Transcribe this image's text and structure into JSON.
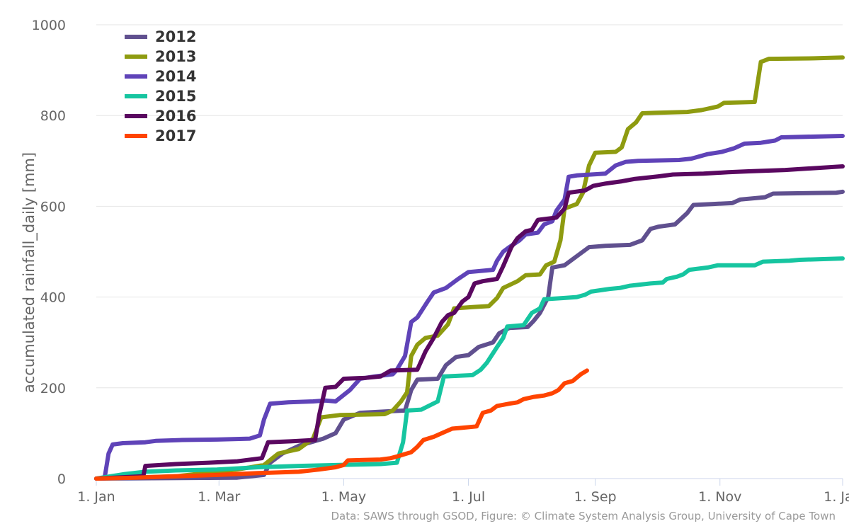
{
  "chart_data": {
    "type": "line",
    "ylabel": "accumulated rainfall_daily [mm]",
    "xlabel": "",
    "ylim": [
      0,
      1000
    ],
    "yticks": [
      "0",
      "200",
      "400",
      "600",
      "800",
      "1000"
    ],
    "xlim": [
      1,
      366
    ],
    "xticks": [
      {
        "label": "1. Jan",
        "day": 1
      },
      {
        "label": "1. Mar",
        "day": 61
      },
      {
        "label": "1. May",
        "day": 122
      },
      {
        "label": "1. Jul",
        "day": 183
      },
      {
        "label": "1. Sep",
        "day": 245
      },
      {
        "label": "1. Nov",
        "day": 306
      },
      {
        "label": "1. Jan",
        "day": 366
      }
    ],
    "grid": "horizontal",
    "legend_position": "top-left",
    "credit": "Data: SAWS through GSOD, Figure: © Climate System Analysis Group, University of Cape Town",
    "series": [
      {
        "name": "2012",
        "color": "#60508f",
        "points": [
          [
            1,
            0
          ],
          [
            70,
            2
          ],
          [
            83,
            8
          ],
          [
            86,
            35
          ],
          [
            92,
            55
          ],
          [
            100,
            72
          ],
          [
            112,
            88
          ],
          [
            118,
            100
          ],
          [
            122,
            130
          ],
          [
            130,
            145
          ],
          [
            143,
            148
          ],
          [
            152,
            150
          ],
          [
            155,
            195
          ],
          [
            158,
            218
          ],
          [
            168,
            220
          ],
          [
            172,
            250
          ],
          [
            177,
            268
          ],
          [
            183,
            272
          ],
          [
            188,
            290
          ],
          [
            195,
            300
          ],
          [
            198,
            320
          ],
          [
            203,
            332
          ],
          [
            212,
            334
          ],
          [
            215,
            348
          ],
          [
            218,
            365
          ],
          [
            222,
            400
          ],
          [
            224,
            465
          ],
          [
            230,
            470
          ],
          [
            236,
            490
          ],
          [
            242,
            510
          ],
          [
            250,
            513
          ],
          [
            262,
            515
          ],
          [
            268,
            525
          ],
          [
            272,
            550
          ],
          [
            276,
            555
          ],
          [
            284,
            560
          ],
          [
            290,
            585
          ],
          [
            293,
            603
          ],
          [
            302,
            605
          ],
          [
            312,
            607
          ],
          [
            316,
            615
          ],
          [
            328,
            620
          ],
          [
            332,
            628
          ],
          [
            363,
            630
          ],
          [
            366,
            632
          ]
        ]
      },
      {
        "name": "2013",
        "color": "#8e9b10",
        "points": [
          [
            1,
            0
          ],
          [
            40,
            5
          ],
          [
            70,
            20
          ],
          [
            83,
            30
          ],
          [
            90,
            55
          ],
          [
            100,
            65
          ],
          [
            107,
            88
          ],
          [
            111,
            135
          ],
          [
            120,
            140
          ],
          [
            142,
            142
          ],
          [
            146,
            150
          ],
          [
            150,
            170
          ],
          [
            153,
            190
          ],
          [
            155,
            270
          ],
          [
            158,
            295
          ],
          [
            162,
            310
          ],
          [
            168,
            315
          ],
          [
            173,
            340
          ],
          [
            176,
            375
          ],
          [
            185,
            378
          ],
          [
            193,
            380
          ],
          [
            197,
            398
          ],
          [
            200,
            420
          ],
          [
            207,
            435
          ],
          [
            211,
            448
          ],
          [
            218,
            450
          ],
          [
            221,
            470
          ],
          [
            225,
            478
          ],
          [
            228,
            525
          ],
          [
            230,
            595
          ],
          [
            233,
            600
          ],
          [
            236,
            605
          ],
          [
            239,
            630
          ],
          [
            242,
            690
          ],
          [
            245,
            718
          ],
          [
            255,
            720
          ],
          [
            258,
            730
          ],
          [
            261,
            770
          ],
          [
            265,
            785
          ],
          [
            268,
            805
          ],
          [
            274,
            806
          ],
          [
            290,
            808
          ],
          [
            297,
            812
          ],
          [
            305,
            820
          ],
          [
            308,
            828
          ],
          [
            323,
            830
          ],
          [
            326,
            918
          ],
          [
            330,
            925
          ],
          [
            352,
            926
          ],
          [
            366,
            928
          ]
        ]
      },
      {
        "name": "2014",
        "color": "#5f43b8",
        "points": [
          [
            1,
            0
          ],
          [
            5,
            0
          ],
          [
            7,
            55
          ],
          [
            9,
            75
          ],
          [
            14,
            78
          ],
          [
            25,
            80
          ],
          [
            30,
            83
          ],
          [
            43,
            85
          ],
          [
            60,
            86
          ],
          [
            76,
            88
          ],
          [
            81,
            95
          ],
          [
            83,
            130
          ],
          [
            86,
            165
          ],
          [
            95,
            168
          ],
          [
            107,
            170
          ],
          [
            113,
            172
          ],
          [
            118,
            170
          ],
          [
            125,
            195
          ],
          [
            130,
            220
          ],
          [
            137,
            225
          ],
          [
            146,
            230
          ],
          [
            148,
            240
          ],
          [
            152,
            270
          ],
          [
            155,
            345
          ],
          [
            158,
            355
          ],
          [
            163,
            390
          ],
          [
            166,
            410
          ],
          [
            172,
            420
          ],
          [
            178,
            440
          ],
          [
            183,
            455
          ],
          [
            195,
            460
          ],
          [
            197,
            480
          ],
          [
            200,
            500
          ],
          [
            203,
            510
          ],
          [
            208,
            525
          ],
          [
            211,
            538
          ],
          [
            217,
            542
          ],
          [
            220,
            560
          ],
          [
            224,
            567
          ],
          [
            226,
            590
          ],
          [
            230,
            615
          ],
          [
            232,
            665
          ],
          [
            236,
            668
          ],
          [
            243,
            670
          ],
          [
            250,
            672
          ],
          [
            255,
            690
          ],
          [
            260,
            698
          ],
          [
            266,
            700
          ],
          [
            286,
            702
          ],
          [
            292,
            705
          ],
          [
            300,
            715
          ],
          [
            307,
            720
          ],
          [
            313,
            728
          ],
          [
            318,
            738
          ],
          [
            326,
            740
          ],
          [
            333,
            745
          ],
          [
            336,
            752
          ],
          [
            366,
            755
          ]
        ]
      },
      {
        "name": "2015",
        "color": "#16c5a0",
        "points": [
          [
            1,
            0
          ],
          [
            15,
            10
          ],
          [
            25,
            15
          ],
          [
            40,
            18
          ],
          [
            60,
            20
          ],
          [
            80,
            25
          ],
          [
            100,
            28
          ],
          [
            120,
            30
          ],
          [
            140,
            32
          ],
          [
            148,
            35
          ],
          [
            151,
            80
          ],
          [
            153,
            150
          ],
          [
            160,
            152
          ],
          [
            168,
            170
          ],
          [
            171,
            225
          ],
          [
            185,
            228
          ],
          [
            189,
            240
          ],
          [
            192,
            255
          ],
          [
            197,
            290
          ],
          [
            200,
            310
          ],
          [
            202,
            335
          ],
          [
            210,
            338
          ],
          [
            214,
            365
          ],
          [
            218,
            375
          ],
          [
            220,
            395
          ],
          [
            230,
            398
          ],
          [
            236,
            400
          ],
          [
            240,
            405
          ],
          [
            243,
            412
          ],
          [
            252,
            418
          ],
          [
            257,
            420
          ],
          [
            262,
            425
          ],
          [
            272,
            430
          ],
          [
            278,
            432
          ],
          [
            280,
            440
          ],
          [
            285,
            445
          ],
          [
            288,
            450
          ],
          [
            291,
            460
          ],
          [
            300,
            465
          ],
          [
            305,
            470
          ],
          [
            323,
            470
          ],
          [
            327,
            478
          ],
          [
            340,
            480
          ],
          [
            345,
            482
          ],
          [
            366,
            485
          ]
        ]
      },
      {
        "name": "2016",
        "color": "#5a0860",
        "points": [
          [
            1,
            0
          ],
          [
            24,
            5
          ],
          [
            25,
            28
          ],
          [
            40,
            32
          ],
          [
            56,
            35
          ],
          [
            70,
            38
          ],
          [
            82,
            45
          ],
          [
            85,
            80
          ],
          [
            96,
            82
          ],
          [
            108,
            85
          ],
          [
            110,
            140
          ],
          [
            113,
            200
          ],
          [
            118,
            202
          ],
          [
            122,
            220
          ],
          [
            133,
            222
          ],
          [
            140,
            225
          ],
          [
            145,
            238
          ],
          [
            158,
            240
          ],
          [
            162,
            280
          ],
          [
            166,
            310
          ],
          [
            170,
            345
          ],
          [
            173,
            360
          ],
          [
            176,
            365
          ],
          [
            180,
            390
          ],
          [
            183,
            400
          ],
          [
            186,
            430
          ],
          [
            190,
            435
          ],
          [
            197,
            440
          ],
          [
            200,
            468
          ],
          [
            204,
            510
          ],
          [
            207,
            530
          ],
          [
            211,
            545
          ],
          [
            214,
            548
          ],
          [
            217,
            570
          ],
          [
            226,
            575
          ],
          [
            230,
            595
          ],
          [
            232,
            630
          ],
          [
            240,
            635
          ],
          [
            244,
            645
          ],
          [
            250,
            650
          ],
          [
            258,
            655
          ],
          [
            264,
            660
          ],
          [
            270,
            663
          ],
          [
            276,
            666
          ],
          [
            283,
            670
          ],
          [
            298,
            672
          ],
          [
            310,
            675
          ],
          [
            320,
            677
          ],
          [
            338,
            680
          ],
          [
            366,
            688
          ]
        ]
      },
      {
        "name": "2017",
        "color": "#ff4400",
        "points": [
          [
            1,
            0
          ],
          [
            20,
            2
          ],
          [
            40,
            5
          ],
          [
            60,
            8
          ],
          [
            80,
            12
          ],
          [
            100,
            15
          ],
          [
            110,
            20
          ],
          [
            118,
            25
          ],
          [
            122,
            30
          ],
          [
            124,
            40
          ],
          [
            140,
            42
          ],
          [
            145,
            45
          ],
          [
            149,
            50
          ],
          [
            155,
            58
          ],
          [
            158,
            70
          ],
          [
            161,
            85
          ],
          [
            166,
            92
          ],
          [
            170,
            100
          ],
          [
            175,
            110
          ],
          [
            180,
            112
          ],
          [
            187,
            115
          ],
          [
            190,
            145
          ],
          [
            194,
            150
          ],
          [
            197,
            160
          ],
          [
            203,
            165
          ],
          [
            207,
            168
          ],
          [
            210,
            175
          ],
          [
            215,
            180
          ],
          [
            220,
            183
          ],
          [
            224,
            188
          ],
          [
            227,
            195
          ],
          [
            230,
            210
          ],
          [
            234,
            215
          ],
          [
            238,
            230
          ],
          [
            241,
            238
          ]
        ]
      }
    ]
  }
}
